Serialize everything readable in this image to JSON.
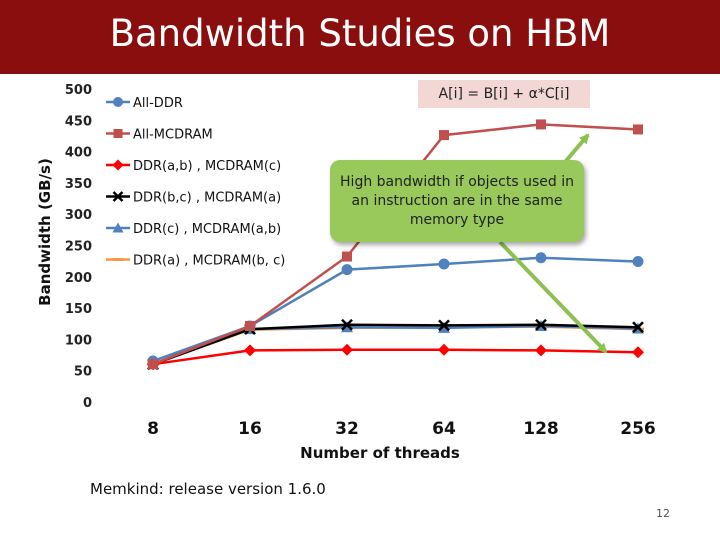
{
  "slide": {
    "title": "Bandwidth Studies on HBM",
    "formula": "A[i] = B[i] + α*C[i]",
    "callout": "High bandwidth if objects used in an instruction are in the same memory type",
    "footer": "Memkind: release version 1.6.0",
    "page_number": "12"
  },
  "colors": {
    "title_bar": "#8b0e0e",
    "callout_fill": "#98c95a",
    "arrow": "#8cc152",
    "formula_fill": "#f2d7d5"
  },
  "chart_data": {
    "type": "line",
    "title": "",
    "xlabel": "Number of threads",
    "ylabel": "Bandwidth (GB/s)",
    "categories": [
      "8",
      "16",
      "32",
      "64",
      "128",
      "256"
    ],
    "ylim": [
      0,
      500
    ],
    "yticks": [
      0,
      50,
      100,
      150,
      200,
      250,
      300,
      350,
      400,
      450,
      500
    ],
    "grid": false,
    "legend_position": "top-left",
    "series": [
      {
        "name": "All-DDR",
        "color": "#4f81bd",
        "marker": "circle",
        "values": [
          67,
          123,
          213,
          222,
          232,
          226
        ]
      },
      {
        "name": "All-MCDRAM",
        "color": "#c0504d",
        "marker": "square",
        "values": [
          62,
          123,
          234,
          428,
          445,
          437
        ]
      },
      {
        "name": "DDR(a,b) , MCDRAM(c)",
        "color": "#ff0000",
        "marker": "diamond",
        "values": [
          62,
          84,
          85,
          85,
          84,
          81
        ]
      },
      {
        "name": "DDR(b,c) , MCDRAM(a)",
        "color": "#000000",
        "marker": "x",
        "values": [
          62,
          118,
          125,
          124,
          125,
          121
        ]
      },
      {
        "name": "DDR(c) , MCDRAM(a,b)",
        "color": "#4f81bd",
        "marker": "triangle",
        "values": [
          62,
          118,
          121,
          120,
          123,
          119
        ]
      },
      {
        "name": "DDR(a) , MCDRAM(b, c)",
        "color": "#f79646",
        "marker": "dash",
        "values": [
          62,
          117,
          120,
          121,
          122,
          118
        ]
      }
    ]
  }
}
